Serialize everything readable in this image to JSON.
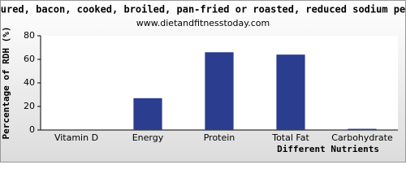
{
  "chart_data": {
    "type": "bar",
    "title": "cured, bacon, cooked, broiled, pan-fried or roasted, reduced sodium per",
    "subtitle": "www.dietandfitnesstoday.com",
    "x_label": "Different Nutrients",
    "y_label": "Percentage of RDH (%)",
    "categories": [
      "Vitamin D",
      "Energy",
      "Protein",
      "Total Fat",
      "Carbohydrate"
    ],
    "values": [
      0,
      27,
      66,
      64,
      1
    ],
    "color": "#2a3d8f",
    "ylim": [
      0,
      80
    ],
    "yticks": [
      0,
      20,
      40,
      60,
      80
    ],
    "grid": false
  }
}
